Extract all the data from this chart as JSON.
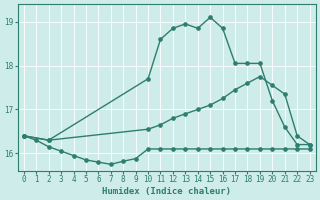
{
  "xlabel": "Humidex (Indice chaleur)",
  "bg_color": "#ceecea",
  "line_color": "#2e7d6e",
  "grid_color": "#ffffff",
  "xlim": [
    -0.5,
    23.5
  ],
  "ylim": [
    15.6,
    19.4
  ],
  "yticks": [
    16,
    17,
    18,
    19
  ],
  "xticks": [
    0,
    1,
    2,
    3,
    4,
    5,
    6,
    7,
    8,
    9,
    10,
    11,
    12,
    13,
    14,
    15,
    16,
    17,
    18,
    19,
    20,
    21,
    22,
    23
  ],
  "line1_x": [
    0,
    1,
    2,
    3,
    4,
    5,
    6,
    7,
    8,
    9,
    10,
    11,
    12,
    13,
    14,
    15,
    16,
    17,
    18,
    19,
    20,
    21,
    22,
    23
  ],
  "line1_y": [
    16.4,
    16.3,
    16.15,
    16.05,
    15.95,
    15.85,
    15.8,
    15.75,
    15.82,
    15.88,
    16.1,
    16.1,
    16.1,
    16.1,
    16.1,
    16.1,
    16.1,
    16.1,
    16.1,
    16.1,
    16.1,
    16.1,
    16.1,
    16.1
  ],
  "line2_x": [
    0,
    2,
    10,
    11,
    12,
    13,
    14,
    15,
    16,
    17,
    18,
    19,
    20,
    21,
    22,
    23
  ],
  "line2_y": [
    16.4,
    16.3,
    16.55,
    16.65,
    16.8,
    16.9,
    17.0,
    17.1,
    17.25,
    17.45,
    17.6,
    17.75,
    17.55,
    17.35,
    16.4,
    16.2
  ],
  "line3_x": [
    0,
    2,
    10,
    11,
    12,
    13,
    14,
    15,
    16,
    17,
    18,
    19,
    20,
    21,
    22,
    23
  ],
  "line3_y": [
    16.4,
    16.3,
    17.7,
    18.6,
    18.85,
    18.95,
    18.85,
    19.1,
    18.85,
    18.05,
    18.05,
    18.05,
    17.2,
    16.6,
    16.2,
    16.2
  ],
  "marker": ".",
  "markersize": 5,
  "linewidth": 1.0
}
